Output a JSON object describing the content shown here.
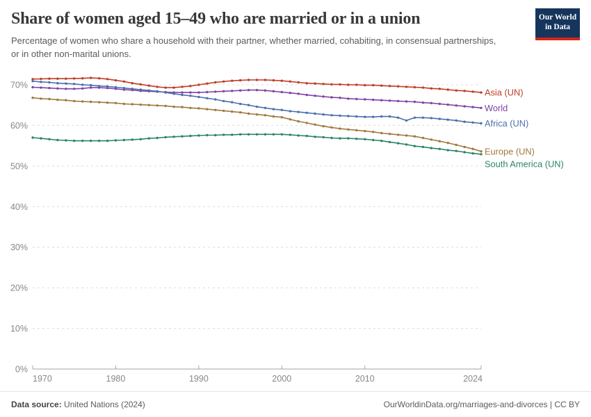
{
  "header": {
    "title": "Share of women aged 15–49 who are married or in a union",
    "subtitle": "Percentage of women who share a household with their partner, whether married, cohabiting, in consensual partnerships, or in other non-marital unions.",
    "logo": {
      "line1": "Our World",
      "line2": "in Data",
      "bg_color": "#16355c",
      "accent_color": "#d1261a"
    }
  },
  "chart_data": {
    "type": "line",
    "title": "Share of women aged 15–49 who are married or in a union",
    "xlabel": "",
    "ylabel": "",
    "ytick_suffix": "%",
    "ylim": [
      0,
      75
    ],
    "yticks": [
      0,
      10,
      20,
      30,
      40,
      50,
      60,
      70
    ],
    "xticks": [
      1970,
      1980,
      1990,
      2000,
      2010,
      2024
    ],
    "grid": "horizontal-dashed",
    "legend_position": "right-end-labels",
    "x": [
      1970,
      1971,
      1972,
      1973,
      1974,
      1975,
      1976,
      1977,
      1978,
      1979,
      1980,
      1981,
      1982,
      1983,
      1984,
      1985,
      1986,
      1987,
      1988,
      1989,
      1990,
      1991,
      1992,
      1993,
      1994,
      1995,
      1996,
      1997,
      1998,
      1999,
      2000,
      2001,
      2002,
      2003,
      2004,
      2005,
      2006,
      2007,
      2008,
      2009,
      2010,
      2011,
      2012,
      2013,
      2014,
      2015,
      2016,
      2017,
      2018,
      2019,
      2020,
      2021,
      2022,
      2023,
      2024
    ],
    "series": [
      {
        "name": "Asia (UN)",
        "color": "#be3e26",
        "values": [
          71.4,
          71.45,
          71.5,
          71.5,
          71.5,
          71.55,
          71.6,
          71.7,
          71.6,
          71.4,
          71.1,
          70.8,
          70.4,
          70.1,
          69.8,
          69.5,
          69.3,
          69.3,
          69.5,
          69.7,
          70.0,
          70.3,
          70.6,
          70.8,
          71.0,
          71.1,
          71.2,
          71.2,
          71.2,
          71.1,
          71.0,
          70.8,
          70.6,
          70.4,
          70.3,
          70.2,
          70.1,
          70.1,
          70.0,
          70.0,
          69.9,
          69.9,
          69.8,
          69.7,
          69.6,
          69.5,
          69.4,
          69.3,
          69.1,
          69.0,
          68.8,
          68.6,
          68.5,
          68.3,
          68.1
        ]
      },
      {
        "name": "World",
        "color": "#7f43a6",
        "values": [
          69.4,
          69.3,
          69.2,
          69.1,
          69.0,
          69.0,
          69.1,
          69.3,
          69.3,
          69.2,
          69.0,
          68.8,
          68.7,
          68.5,
          68.4,
          68.3,
          68.2,
          68.1,
          68.1,
          68.1,
          68.1,
          68.2,
          68.3,
          68.4,
          68.5,
          68.6,
          68.7,
          68.7,
          68.6,
          68.4,
          68.2,
          68.0,
          67.8,
          67.5,
          67.3,
          67.1,
          66.9,
          66.8,
          66.6,
          66.5,
          66.4,
          66.3,
          66.2,
          66.1,
          66.0,
          65.9,
          65.8,
          65.6,
          65.5,
          65.3,
          65.1,
          64.9,
          64.7,
          64.5,
          64.3
        ]
      },
      {
        "name": "Africa (UN)",
        "color": "#4c6fab",
        "values": [
          70.9,
          70.7,
          70.6,
          70.4,
          70.3,
          70.2,
          70.0,
          69.9,
          69.7,
          69.6,
          69.4,
          69.2,
          69.0,
          68.8,
          68.6,
          68.4,
          68.1,
          67.8,
          67.5,
          67.3,
          67.0,
          66.7,
          66.4,
          66.0,
          65.7,
          65.3,
          65.0,
          64.6,
          64.3,
          64.0,
          63.8,
          63.5,
          63.3,
          63.1,
          62.9,
          62.7,
          62.5,
          62.4,
          62.3,
          62.2,
          62.1,
          62.1,
          62.2,
          62.2,
          61.9,
          61.2,
          61.9,
          61.9,
          61.8,
          61.6,
          61.4,
          61.2,
          60.9,
          60.7,
          60.5
        ]
      },
      {
        "name": "Europe (UN)",
        "color": "#a0793c",
        "values": [
          66.8,
          66.6,
          66.5,
          66.3,
          66.2,
          66.0,
          65.9,
          65.8,
          65.7,
          65.6,
          65.5,
          65.3,
          65.2,
          65.1,
          65.0,
          64.9,
          64.8,
          64.6,
          64.5,
          64.3,
          64.2,
          64.0,
          63.8,
          63.6,
          63.4,
          63.2,
          62.9,
          62.7,
          62.5,
          62.2,
          62.0,
          61.5,
          61.0,
          60.6,
          60.2,
          59.8,
          59.5,
          59.2,
          59.0,
          58.8,
          58.6,
          58.4,
          58.1,
          57.9,
          57.7,
          57.5,
          57.3,
          56.9,
          56.5,
          56.1,
          55.7,
          55.2,
          54.7,
          54.2,
          53.6
        ]
      },
      {
        "name": "South America (UN)",
        "color": "#2c8465",
        "values": [
          57.0,
          56.8,
          56.6,
          56.4,
          56.3,
          56.2,
          56.2,
          56.2,
          56.2,
          56.2,
          56.3,
          56.4,
          56.5,
          56.6,
          56.8,
          56.9,
          57.1,
          57.2,
          57.3,
          57.4,
          57.5,
          57.6,
          57.6,
          57.7,
          57.7,
          57.8,
          57.8,
          57.8,
          57.8,
          57.8,
          57.8,
          57.7,
          57.5,
          57.4,
          57.2,
          57.1,
          56.9,
          56.8,
          56.8,
          56.7,
          56.6,
          56.4,
          56.2,
          55.9,
          55.6,
          55.3,
          54.9,
          54.7,
          54.4,
          54.2,
          53.9,
          53.7,
          53.4,
          53.1,
          52.9
        ]
      }
    ]
  },
  "footer": {
    "source_label": "Data source:",
    "source_value": "United Nations (2024)",
    "credit": "OurWorldinData.org/marriages-and-divorces | CC BY"
  }
}
